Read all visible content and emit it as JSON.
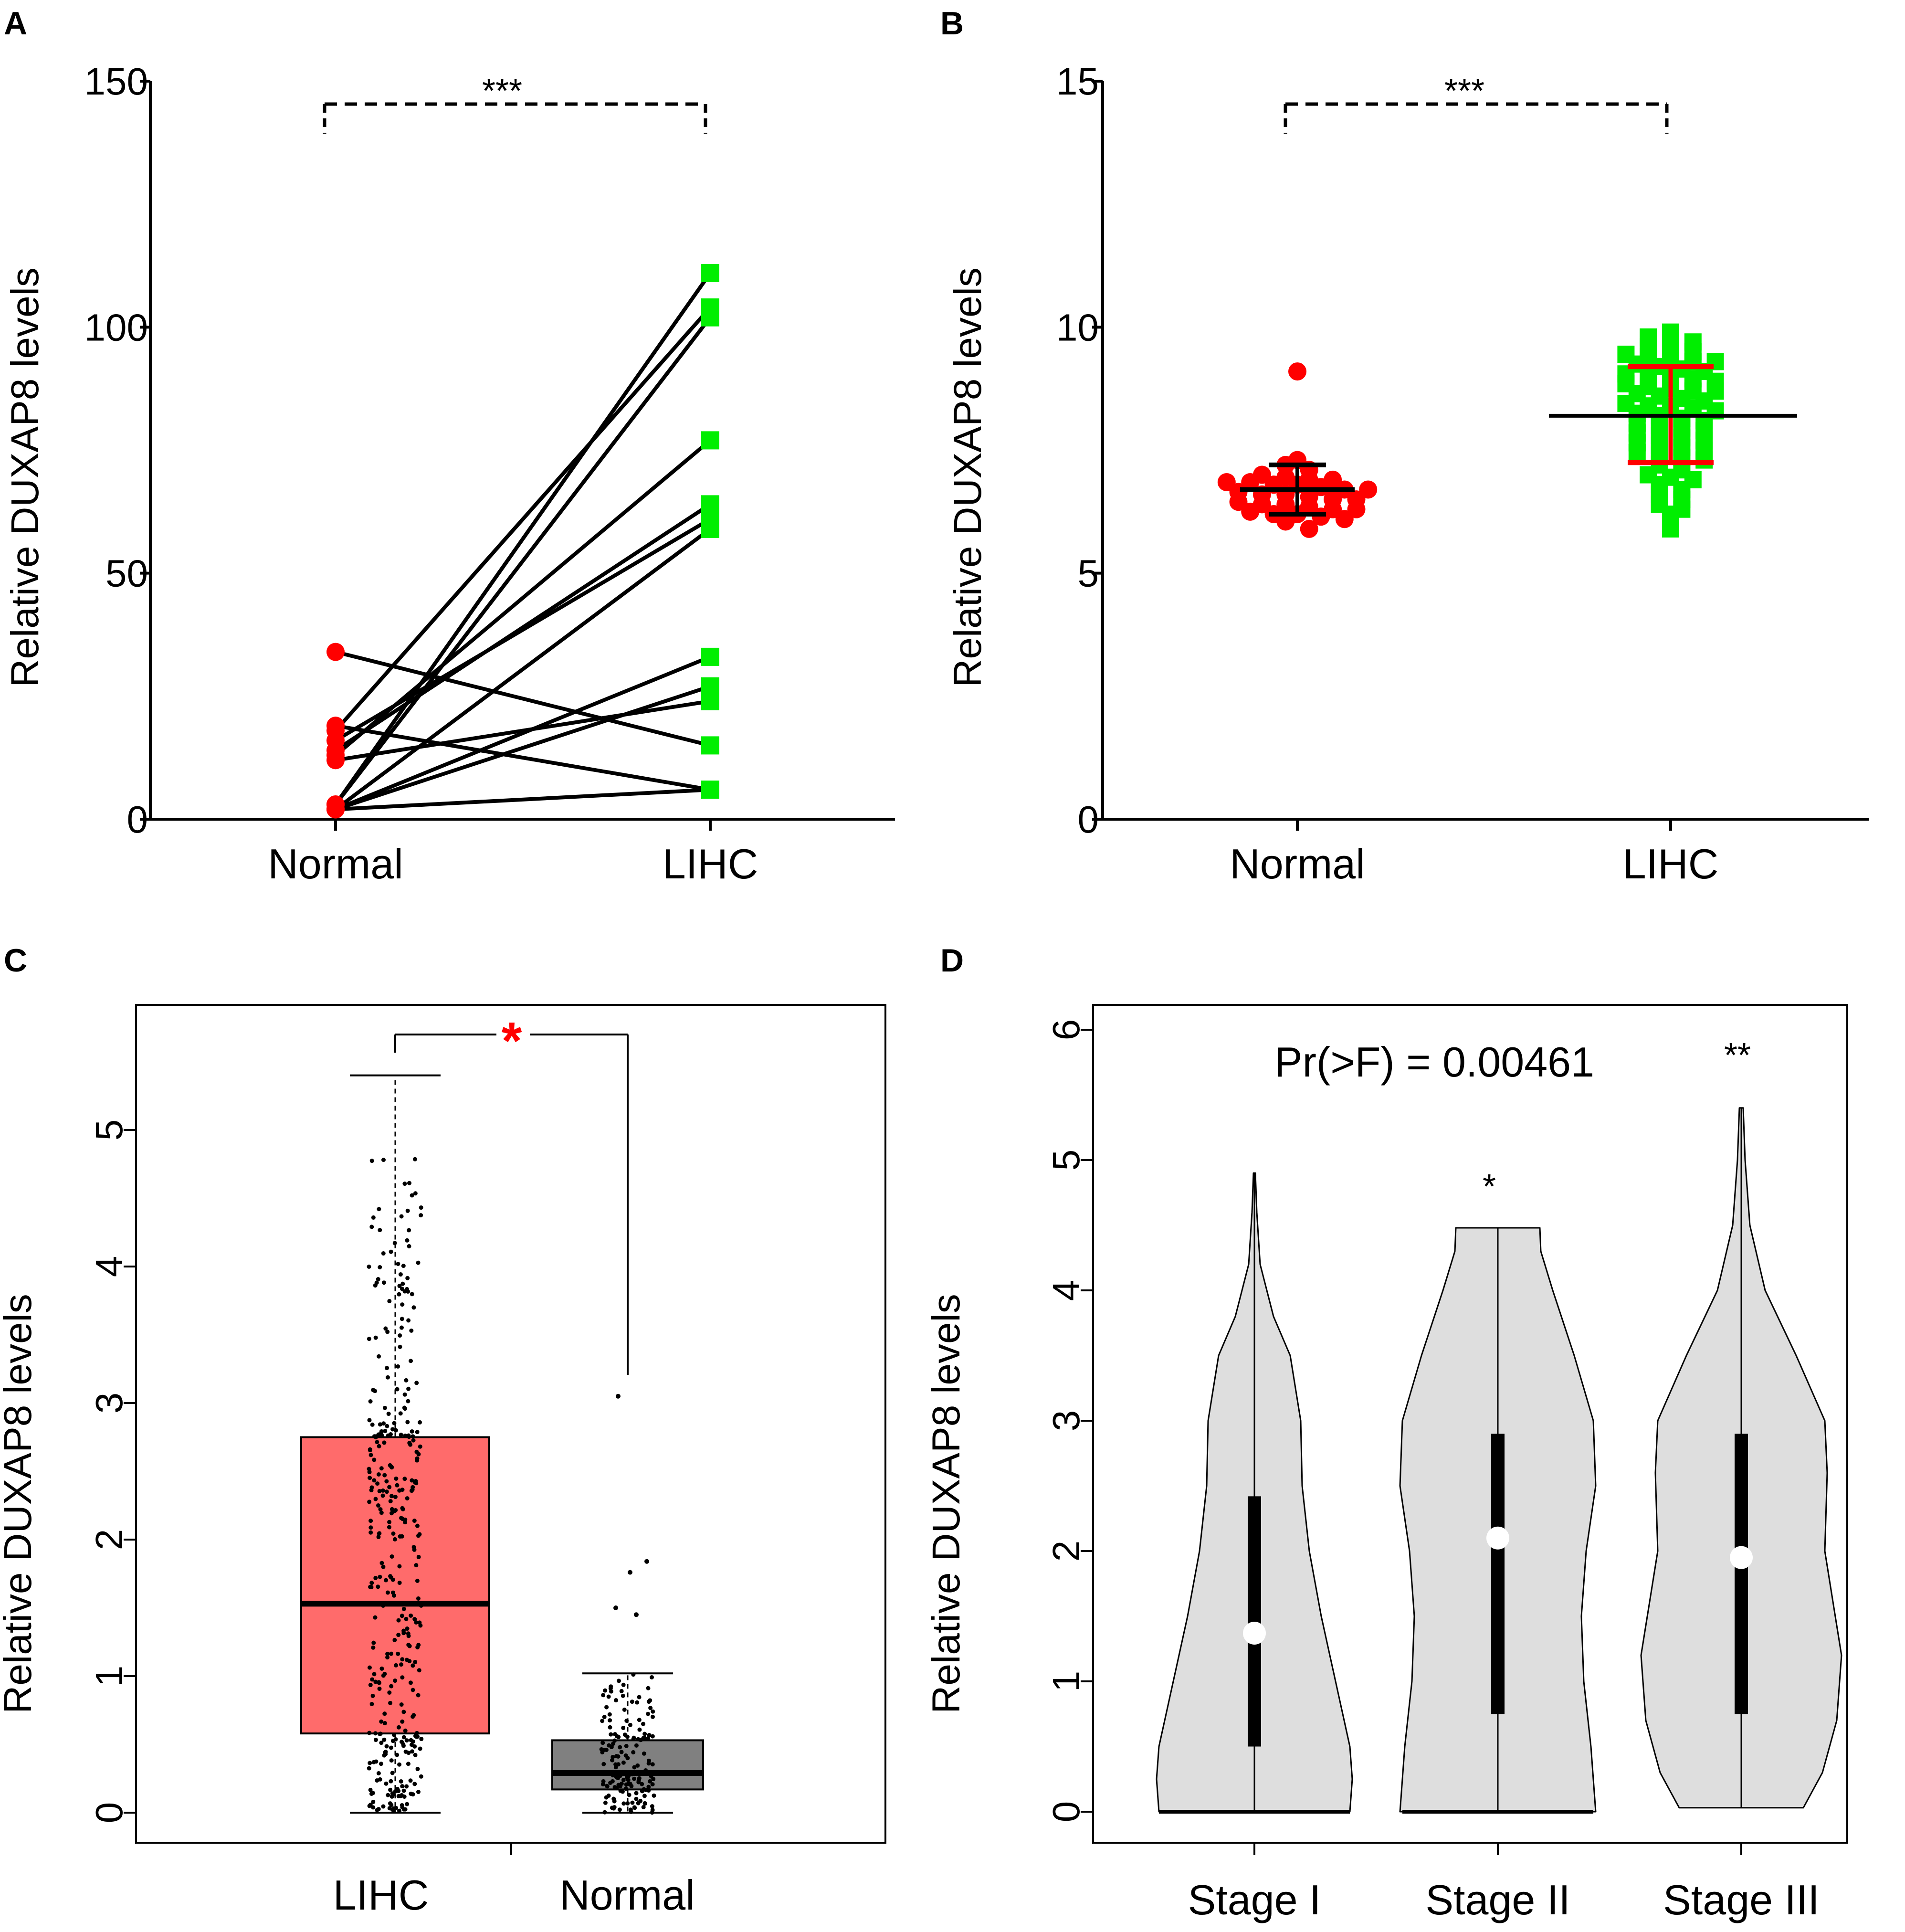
{
  "colors": {
    "red": "#ff0000",
    "green": "#00ee00",
    "box_red": "#ff6b6b",
    "box_grey": "#808080",
    "violin_fill": "#dedede",
    "black": "#000000",
    "white": "#ffffff"
  },
  "chart_data": [
    {
      "panel": "A",
      "type": "scatter",
      "subtype": "paired-lines",
      "ylabel": "Relative DUXAP8 levels",
      "categories": [
        "Normal",
        "LIHC"
      ],
      "yticks": [
        "0",
        "50",
        "100",
        "150"
      ],
      "ylim": [
        0,
        150
      ],
      "significance": "***",
      "pairs": [
        [
          34,
          15
        ],
        [
          19,
          6
        ],
        [
          18,
          104
        ],
        [
          16,
          61
        ],
        [
          14,
          64
        ],
        [
          13,
          77
        ],
        [
          12,
          24
        ],
        [
          3,
          111
        ],
        [
          3,
          102
        ],
        [
          2,
          59
        ],
        [
          2,
          33
        ],
        [
          2,
          27
        ],
        [
          2,
          6
        ]
      ]
    },
    {
      "panel": "B",
      "type": "scatter",
      "subtype": "dot-plot-mean-sd",
      "ylabel": "Relative DUXAP8 levels",
      "categories": [
        "Normal",
        "LIHC"
      ],
      "yticks": [
        "0",
        "5",
        "10",
        "15"
      ],
      "ylim": [
        0,
        15
      ],
      "significance": "***",
      "normal": {
        "mean": 6.7,
        "sd_low": 6.2,
        "sd_high": 7.2,
        "values": [
          9.1,
          7.3,
          7.2,
          7.1,
          7.0,
          6.95,
          6.9,
          6.9,
          6.85,
          6.85,
          6.8,
          6.8,
          6.75,
          6.7,
          6.7,
          6.65,
          6.6,
          6.6,
          6.55,
          6.5,
          6.5,
          6.45,
          6.4,
          6.4,
          6.35,
          6.3,
          6.3,
          6.25,
          6.2,
          6.2,
          6.15,
          6.1,
          6.05,
          5.9
        ]
      },
      "lihc": {
        "mean": 8.2,
        "sd_low": 7.25,
        "sd_high": 9.2,
        "values": [
          9.9,
          9.8,
          9.7,
          9.7,
          9.6,
          9.55,
          9.5,
          9.45,
          9.4,
          9.35,
          9.3,
          9.3,
          9.25,
          9.2,
          9.15,
          9.1,
          9.05,
          9.0,
          9.0,
          8.95,
          8.9,
          8.85,
          8.8,
          8.75,
          8.7,
          8.7,
          8.65,
          8.6,
          8.55,
          8.5,
          8.45,
          8.4,
          8.4,
          8.35,
          8.3,
          8.25,
          8.2,
          8.15,
          8.1,
          8.05,
          8.0,
          7.95,
          7.9,
          7.85,
          7.8,
          7.75,
          7.7,
          7.65,
          7.6,
          7.55,
          7.5,
          7.45,
          7.4,
          7.35,
          7.3,
          7.2,
          7.1,
          7.0,
          6.95,
          6.9,
          6.8,
          6.7,
          6.6,
          6.5,
          6.4,
          6.3,
          6.2,
          5.9
        ]
      }
    },
    {
      "panel": "C",
      "type": "box",
      "ylabel": "Relative DUXAP8 levels",
      "categories": [
        "LIHC",
        "Normal"
      ],
      "yticks": [
        "0",
        "1",
        "2",
        "3",
        "4",
        "5"
      ],
      "ylim": [
        0,
        5.9
      ],
      "significance": "*",
      "boxes": [
        {
          "name": "LIHC",
          "min": 0,
          "q1": 0.58,
          "median": 1.53,
          "q3": 2.75,
          "max": 5.4,
          "n_points": 369
        },
        {
          "name": "Normal",
          "min": 0,
          "q1": 0.17,
          "median": 0.29,
          "q3": 0.53,
          "max": 1.02,
          "n_points": 160,
          "outliers": [
            3.05,
            1.84,
            1.76,
            1.5,
            1.45
          ]
        }
      ]
    },
    {
      "panel": "D",
      "type": "violin",
      "ylabel": "Relative DUXAP8 levels",
      "categories": [
        "Stage I",
        "Stage II",
        "Stage III"
      ],
      "yticks": [
        "0",
        "1",
        "2",
        "3",
        "4",
        "5",
        "6"
      ],
      "ylim": [
        0,
        6
      ],
      "annotation": "Pr(>F) = 0.00461",
      "violins": [
        {
          "name": "Stage I",
          "min": 0,
          "q1": 0.5,
          "median": 1.37,
          "q3": 2.42,
          "max": 4.9,
          "significance": ""
        },
        {
          "name": "Stage II",
          "min": 0,
          "q1": 0.75,
          "median": 2.1,
          "q3": 2.9,
          "max": 4.48,
          "significance": "*"
        },
        {
          "name": "Stage III",
          "min": 0.03,
          "q1": 0.75,
          "median": 1.95,
          "q3": 2.9,
          "max": 5.4,
          "significance": "**"
        }
      ]
    }
  ],
  "labels": {
    "panel_a": "A",
    "panel_b": "B",
    "panel_c": "C",
    "panel_d": "D"
  }
}
